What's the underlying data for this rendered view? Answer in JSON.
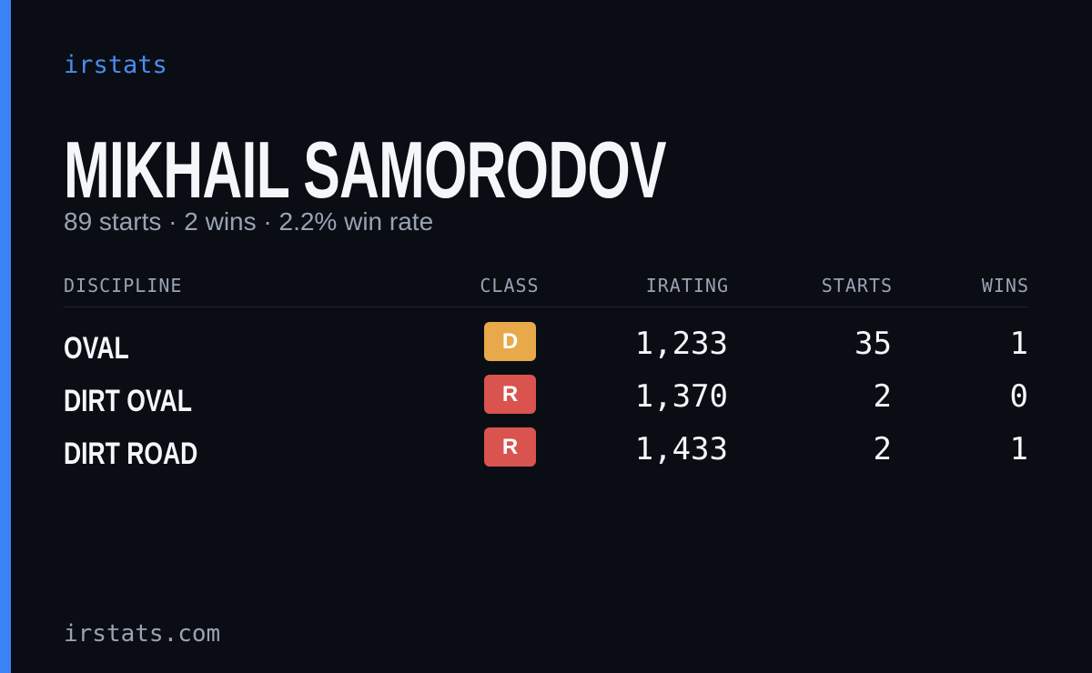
{
  "header": {
    "brand": "irstats",
    "name": "MIKHAIL SAMORODOV",
    "summary": "89 starts · 2 wins · 2.2% win rate"
  },
  "table": {
    "columns": [
      "DISCIPLINE",
      "CLASS",
      "IRATING",
      "STARTS",
      "WINS"
    ],
    "rows": [
      [
        "OVAL",
        "D",
        "1,233",
        "35",
        "1"
      ],
      [
        "DIRT OVAL",
        "R",
        "1,370",
        "2",
        "0"
      ],
      [
        "DIRT ROAD",
        "R",
        "1,433",
        "2",
        "1"
      ]
    ]
  },
  "footer": {
    "site": "irstats.com"
  }
}
